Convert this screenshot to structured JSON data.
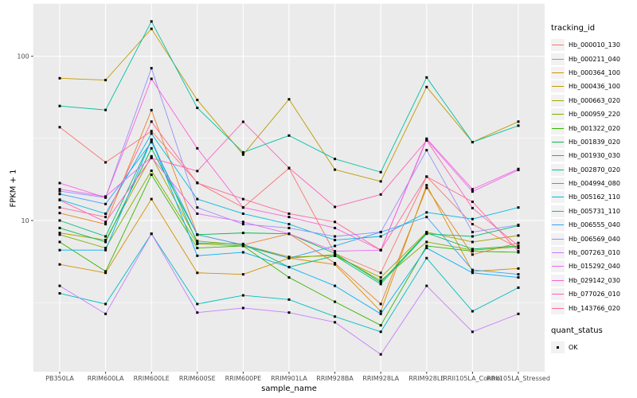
{
  "figure": {
    "background": "#FFFFFF",
    "panel_background": "#EBEBEB",
    "grid_color": "#FFFFFF",
    "axis_text_color": "#4D4D4D",
    "tick_color": "#333333"
  },
  "axes": {
    "x_title": "sample_name",
    "y_title": "FPKM + 1",
    "y_scale": "log10",
    "y_major_ticks": [
      {
        "label": "100",
        "value": 100
      },
      {
        "label": "10",
        "value": 10
      }
    ],
    "y_minor_gridlines": [
      31.62,
      3.162
    ]
  },
  "legend": {
    "tracking_title": "tracking_id",
    "quant_title": "quant_status",
    "quant_items": [
      {
        "label": "OK",
        "marker": "square",
        "color": "#000000"
      }
    ],
    "key_background": "#F2F2F2"
  },
  "chart_data": {
    "type": "line",
    "title": "",
    "xlabel": "sample_name",
    "ylabel": "FPKM + 1",
    "y_log_scale": true,
    "ylim": [
      1.2,
      209
    ],
    "grid": true,
    "legend_position": "right",
    "marker": {
      "shape": "square",
      "color": "#000000",
      "size": 3
    },
    "x_categories": [
      "PB350LA",
      "RRIM600LA",
      "RRIM600LE",
      "RRIM600SE",
      "RRIM600PE",
      "RRIM901LA",
      "RRIM928BA",
      "RRIM928LA",
      "RRIM928LE",
      "RRII105LA_Control",
      "RRII105LA_Stressed"
    ],
    "series": [
      {
        "name": "Hb_000010_130",
        "color": "#F8766D",
        "values": [
          37,
          22.6,
          35,
          17,
          12,
          20.8,
          6.3,
          4.8,
          18.5,
          9.5,
          6.8
        ]
      },
      {
        "name": "Hb_000211_040",
        "color": "#EA8331",
        "values": [
          11.1,
          9.5,
          47,
          8.2,
          7.1,
          8.3,
          5.5,
          3.1,
          15.8,
          6.2,
          7.3
        ]
      },
      {
        "name": "Hb_000364_100",
        "color": "#D89000",
        "values": [
          5.4,
          4.8,
          13.5,
          4.8,
          4.7,
          5.9,
          5.4,
          2.8,
          16.4,
          4.9,
          5.1
        ]
      },
      {
        "name": "Hb_000436_100",
        "color": "#C09B00",
        "values": [
          73.5,
          71.6,
          147,
          54.2,
          25.2,
          54.7,
          20.4,
          17.3,
          65,
          30,
          40
        ]
      },
      {
        "name": "Hb_000663_020",
        "color": "#A3A500",
        "values": [
          8.4,
          7.6,
          24.6,
          7.5,
          7.1,
          6.0,
          6.1,
          4.5,
          8.5,
          7.4,
          8.1
        ]
      },
      {
        "name": "Hb_000959_220",
        "color": "#7CAE00",
        "values": [
          8.2,
          6.8,
          20.1,
          7.2,
          7.0,
          5.9,
          6.2,
          4.3,
          7.4,
          6.6,
          6.9
        ]
      },
      {
        "name": "Hb_001322_020",
        "color": "#39B600",
        "values": [
          7.4,
          4.9,
          19,
          6.8,
          7.0,
          4.5,
          3.2,
          2.3,
          7.0,
          6.5,
          6.4
        ]
      },
      {
        "name": "Hb_001839_020",
        "color": "#00BB4E",
        "values": [
          9.0,
          7.4,
          27.5,
          8.2,
          8.4,
          8.3,
          6.3,
          4.2,
          8.4,
          6.7,
          7.0
        ]
      },
      {
        "name": "Hb_001930_030",
        "color": "#00BF7D",
        "values": [
          10.0,
          8.0,
          31,
          7.3,
          7.2,
          5.2,
          6.1,
          4.1,
          8.3,
          8.0,
          9.3
        ]
      },
      {
        "name": "Hb_002870_020",
        "color": "#00C1A3",
        "values": [
          49.8,
          47.1,
          163,
          48.5,
          26,
          32.9,
          23.7,
          19.7,
          74.3,
          30,
          37.8
        ]
      },
      {
        "name": "Hb_004994_080",
        "color": "#00BFC4",
        "values": [
          3.6,
          3.1,
          8.3,
          3.1,
          3.5,
          3.3,
          2.6,
          2.1,
          5.9,
          2.8,
          3.9
        ]
      },
      {
        "name": "Hb_005162_110",
        "color": "#00BAE0",
        "values": [
          13.4,
          11.0,
          33.8,
          13.5,
          11.0,
          9.5,
          7.6,
          8.0,
          11.2,
          10.2,
          12.0
        ]
      },
      {
        "name": "Hb_005731_110",
        "color": "#00B0F6",
        "values": [
          6.6,
          6.6,
          31.1,
          6.1,
          6.4,
          5.2,
          4.0,
          2.7,
          6.8,
          4.8,
          4.5
        ]
      },
      {
        "name": "Hb_006555_040",
        "color": "#35A2FF",
        "values": [
          14.5,
          12.6,
          30,
          8.2,
          7.1,
          5.9,
          7.0,
          8.5,
          10.5,
          5.0,
          4.7
        ]
      },
      {
        "name": "Hb_006569_040",
        "color": "#9590FF",
        "values": [
          15.1,
          13.8,
          84.6,
          12,
          9.5,
          9.0,
          8.0,
          8.5,
          26.8,
          8.5,
          9.4
        ]
      },
      {
        "name": "Hb_007263_010",
        "color": "#C77CFF",
        "values": [
          4.0,
          2.7,
          8.3,
          2.75,
          2.93,
          2.75,
          2.4,
          1.53,
          4.0,
          2.1,
          2.7
        ]
      },
      {
        "name": "Hb_015292_040",
        "color": "#E76BF3",
        "values": [
          15.5,
          14,
          24.3,
          11,
          9.8,
          8.3,
          6.5,
          6.6,
          31,
          15.0,
          20.3
        ]
      },
      {
        "name": "Hb_029142_030",
        "color": "#FA62DB",
        "values": [
          16.9,
          13.8,
          72.9,
          27.5,
          12,
          10.5,
          9.0,
          6.6,
          31.5,
          15.5,
          20.6
        ]
      },
      {
        "name": "Hb_077026_010",
        "color": "#FF62BC",
        "values": [
          13.3,
          9.8,
          24,
          20,
          39.9,
          20.9,
          12.1,
          14.4,
          30.7,
          11.9,
          7.0
        ]
      },
      {
        "name": "Hb_143766_020",
        "color": "#FF6A98",
        "values": [
          12.0,
          10.5,
          40,
          16.9,
          13.5,
          11.0,
          9.8,
          6.6,
          18.5,
          13.0,
          6.5
        ]
      }
    ]
  }
}
